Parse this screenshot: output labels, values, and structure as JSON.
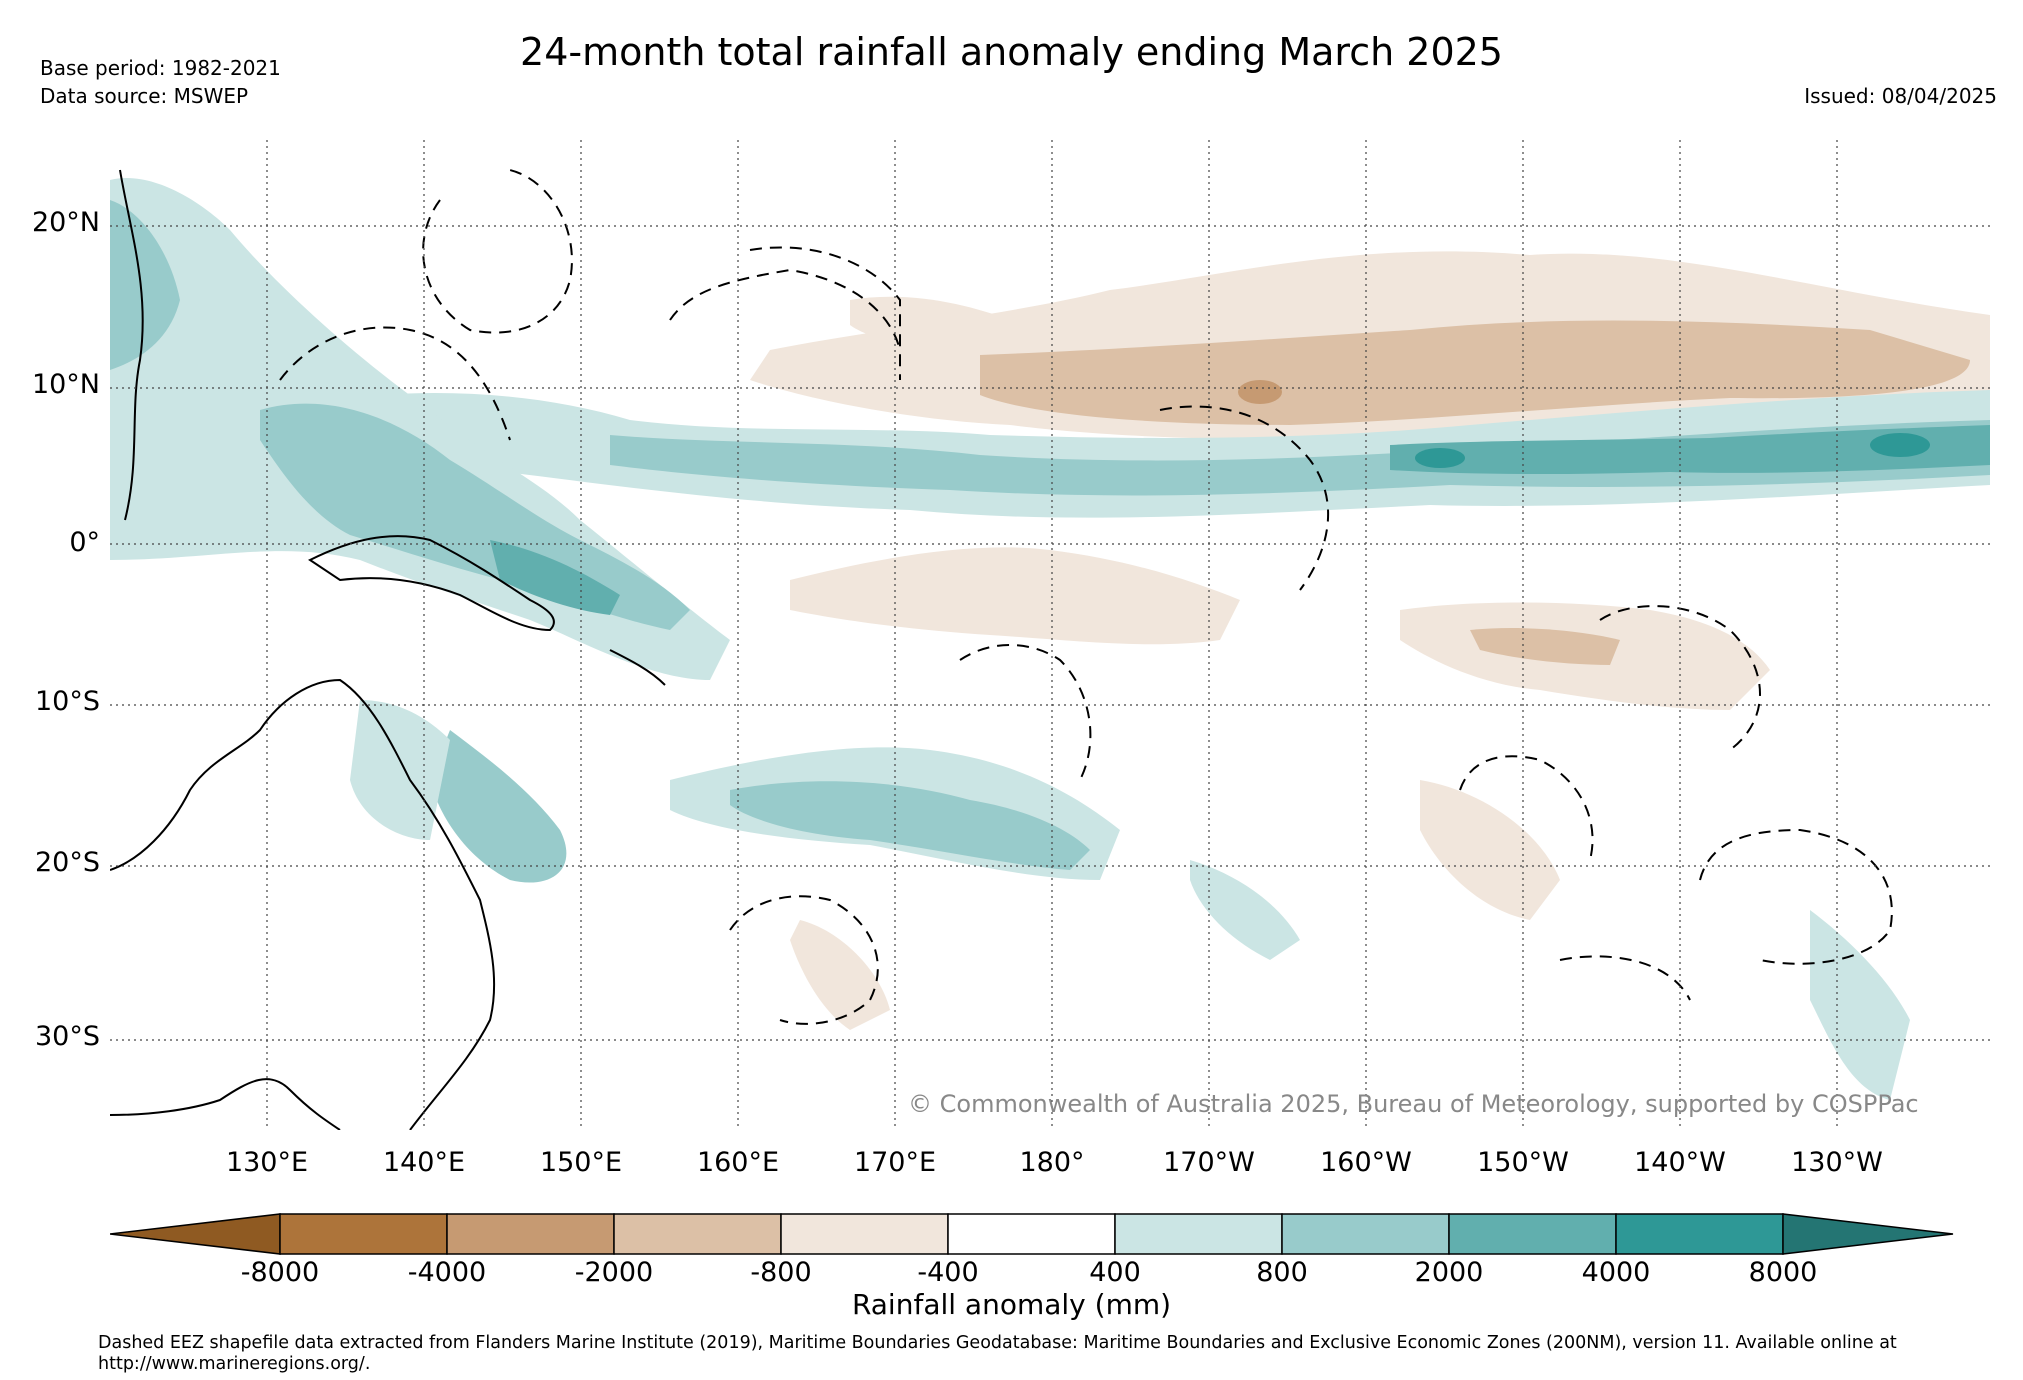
{
  "header": {
    "title": "24-month total rainfall anomaly ending March 2025",
    "base_period": "Base period: 1982-2021",
    "data_source": "Data source: MSWEP",
    "issued": "Issued: 08/04/2025"
  },
  "map": {
    "lat_ticks": [
      "20°N",
      "10°N",
      "0°",
      "10°S",
      "20°S",
      "30°S"
    ],
    "lon_ticks": [
      "130°E",
      "140°E",
      "150°E",
      "160°E",
      "170°E",
      "180°",
      "170°W",
      "160°W",
      "150°W",
      "140°W",
      "130°W"
    ],
    "copyright": "© Commonwealth of Australia 2025, Bureau of Meteorology, supported by COSPPac",
    "regions": [
      "dry anomaly band north of equator (5°N–15°N)",
      "wet anomaly band along 5°N",
      "wet anomaly over Papua New Guinea / Solomon Islands",
      "dry anomaly central-south Pacific",
      "wet anomaly over Vanuatu / Fiji / Tonga"
    ]
  },
  "colorbar": {
    "title": "Rainfall anomaly (mm)",
    "labels": [
      "-8000",
      "-4000",
      "-2000",
      "-800",
      "-400",
      "400",
      "800",
      "2000",
      "4000",
      "8000"
    ],
    "colors": [
      "#8f5a22",
      "#ad743a",
      "#c69a72",
      "#dcc0a6",
      "#f1e6dc",
      "#ffffff",
      "#cbe5e4",
      "#98cbcb",
      "#61afae",
      "#2e9896",
      "#247573"
    ]
  },
  "footnote": "Dashed EEZ shapefile data extracted from Flanders Marine Institute (2019), Maritime Boundaries Geodatabase: Maritime Boundaries and Exclusive Economic Zones (200NM), version 11. Available online at http://www.marineregions.org/."
}
